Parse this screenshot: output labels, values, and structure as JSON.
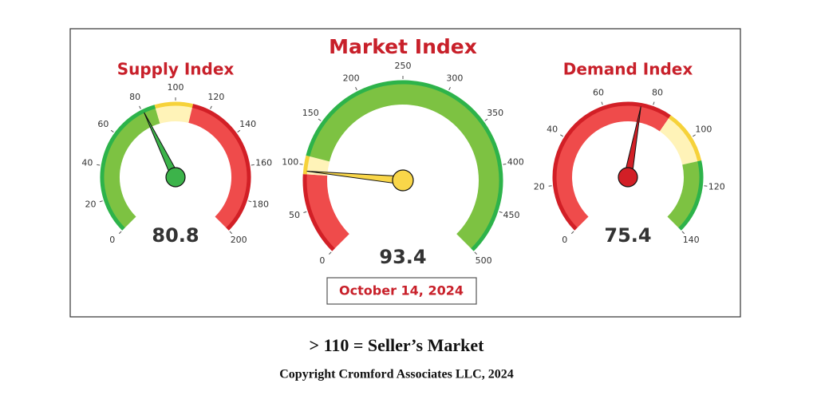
{
  "chart_data": [
    {
      "type": "gauge",
      "title": "Supply Index",
      "value": 80.8,
      "range": [
        0,
        200
      ],
      "ticks": [
        0,
        20,
        40,
        60,
        80,
        100,
        120,
        140,
        160,
        180,
        200
      ],
      "needle_color": "#3cb34a",
      "bands": [
        {
          "from": 0,
          "to": 88,
          "color": "#7dc242",
          "edge": "#2db34a"
        },
        {
          "from": 88,
          "to": 110,
          "color": "#fff3b8",
          "edge": "#f6d23a"
        },
        {
          "from": 110,
          "to": 200,
          "color": "#ef4b4b",
          "edge": "#d21f26"
        }
      ]
    },
    {
      "type": "gauge",
      "title": "Market Index",
      "value": 93.4,
      "range": [
        0,
        500
      ],
      "ticks": [
        0,
        50,
        100,
        150,
        200,
        250,
        300,
        350,
        400,
        450,
        500
      ],
      "needle_color": "#f9d649",
      "bands": [
        {
          "from": 0,
          "to": 90,
          "color": "#ef4b4b",
          "edge": "#d21f26"
        },
        {
          "from": 90,
          "to": 110,
          "color": "#fff3b8",
          "edge": "#f6d23a"
        },
        {
          "from": 110,
          "to": 500,
          "color": "#7dc242",
          "edge": "#2db34a"
        }
      ]
    },
    {
      "type": "gauge",
      "title": "Demand Index",
      "value": 75.4,
      "range": [
        0,
        140
      ],
      "ticks": [
        0,
        20,
        40,
        60,
        80,
        100,
        120,
        140
      ],
      "needle_color": "#d21f26",
      "bands": [
        {
          "from": 0,
          "to": 88,
          "color": "#ef4b4b",
          "edge": "#d21f26"
        },
        {
          "from": 88,
          "to": 110,
          "color": "#fff3b8",
          "edge": "#f6d23a"
        },
        {
          "from": 110,
          "to": 140,
          "color": "#7dc242",
          "edge": "#2db34a"
        }
      ]
    }
  ],
  "date": "October 14, 2024",
  "footer": {
    "rule": "> 110 = Seller’s Market",
    "copyright": "Copyright Cromford Associates LLC, 2024"
  }
}
